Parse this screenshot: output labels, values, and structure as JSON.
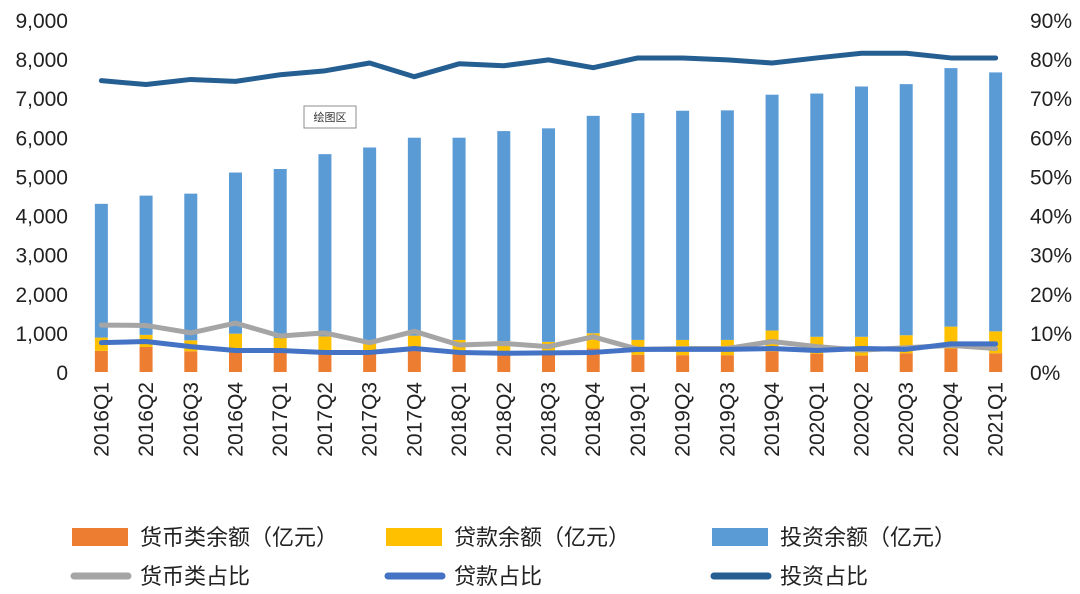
{
  "chart_data": {
    "type": "bar",
    "stacked": true,
    "title": "",
    "plot_area_label": "绘图区",
    "categories": [
      "2016Q1",
      "2016Q2",
      "2016Q3",
      "2016Q4",
      "2017Q1",
      "2017Q2",
      "2017Q3",
      "2017Q4",
      "2018Q1",
      "2018Q2",
      "2018Q3",
      "2018Q4",
      "2019Q1",
      "2019Q2",
      "2019Q3",
      "2019Q4",
      "2020Q1",
      "2020Q2",
      "2020Q3",
      "2020Q4",
      "2021Q1"
    ],
    "left_axis": {
      "ylim": [
        0,
        9000
      ],
      "ticks": [
        0,
        1000,
        2000,
        3000,
        4000,
        5000,
        6000,
        7000,
        8000,
        9000
      ],
      "tick_labels": [
        "0",
        "1,000",
        "2,000",
        "3,000",
        "4,000",
        "5,000",
        "6,000",
        "7,000",
        "8,000",
        "9,000"
      ]
    },
    "right_axis": {
      "ylim": [
        0,
        90
      ],
      "ticks": [
        0,
        10,
        20,
        30,
        40,
        50,
        60,
        70,
        80,
        90
      ],
      "tick_labels": [
        "0%",
        "10%",
        "20%",
        "30%",
        "40%",
        "50%",
        "60%",
        "70%",
        "80%",
        "90%"
      ]
    },
    "bar_series": [
      {
        "name": "货币类余额（亿元）",
        "color": "#ED7D31",
        "values": [
          540,
          640,
          530,
          600,
          560,
          480,
          500,
          560,
          480,
          460,
          490,
          600,
          440,
          430,
          430,
          530,
          470,
          420,
          480,
          600,
          480
        ]
      },
      {
        "name": "贷款余额（亿元）",
        "color": "#FFC000",
        "values": [
          340,
          310,
          280,
          380,
          310,
          430,
          290,
          370,
          340,
          330,
          280,
          390,
          380,
          390,
          390,
          530,
          430,
          480,
          460,
          560,
          560
        ]
      },
      {
        "name": "投资余额（亿元）",
        "color": "#5B9BD5",
        "values": [
          3420,
          3560,
          3750,
          4120,
          4320,
          4660,
          4950,
          5060,
          5170,
          5370,
          5460,
          5560,
          5800,
          5860,
          5870,
          6030,
          6220,
          6400,
          6420,
          6610,
          6620
        ]
      }
    ],
    "line_series": [
      {
        "name": "货币类占比",
        "color": "#A5A5A5",
        "values": [
          12.0,
          11.9,
          10.0,
          12.5,
          9.2,
          10.0,
          7.5,
          10.4,
          6.9,
          7.3,
          6.5,
          9.0,
          5.8,
          6.0,
          6.0,
          7.8,
          6.5,
          5.6,
          6.2,
          6.8,
          6.0
        ]
      },
      {
        "name": "贷款占比",
        "color": "#4472C4",
        "values": [
          7.5,
          7.8,
          6.5,
          5.5,
          5.5,
          5.0,
          5.0,
          6.0,
          5.0,
          4.8,
          4.9,
          5.0,
          5.8,
          5.8,
          5.8,
          6.0,
          5.5,
          6.0,
          5.8,
          7.2,
          7.2
        ]
      },
      {
        "name": "投资占比",
        "color": "#255E91",
        "values": [
          74.5,
          73.5,
          74.8,
          74.3,
          76.0,
          77.0,
          79.0,
          75.5,
          78.8,
          78.3,
          79.8,
          77.8,
          80.3,
          80.3,
          79.8,
          79.0,
          80.3,
          81.5,
          81.5,
          80.3,
          80.3
        ]
      }
    ],
    "legend_position": "bottom",
    "legend": [
      {
        "name": "货币类余额（亿元）",
        "kind": "bar",
        "color": "#ED7D31"
      },
      {
        "name": "贷款余额（亿元）",
        "kind": "bar",
        "color": "#FFC000"
      },
      {
        "name": "投资余额（亿元）",
        "kind": "bar",
        "color": "#5B9BD5"
      },
      {
        "name": "货币类占比",
        "kind": "line",
        "color": "#A5A5A5"
      },
      {
        "name": "贷款占比",
        "kind": "line",
        "color": "#4472C4"
      },
      {
        "name": "投资占比",
        "kind": "line",
        "color": "#255E91"
      }
    ]
  }
}
